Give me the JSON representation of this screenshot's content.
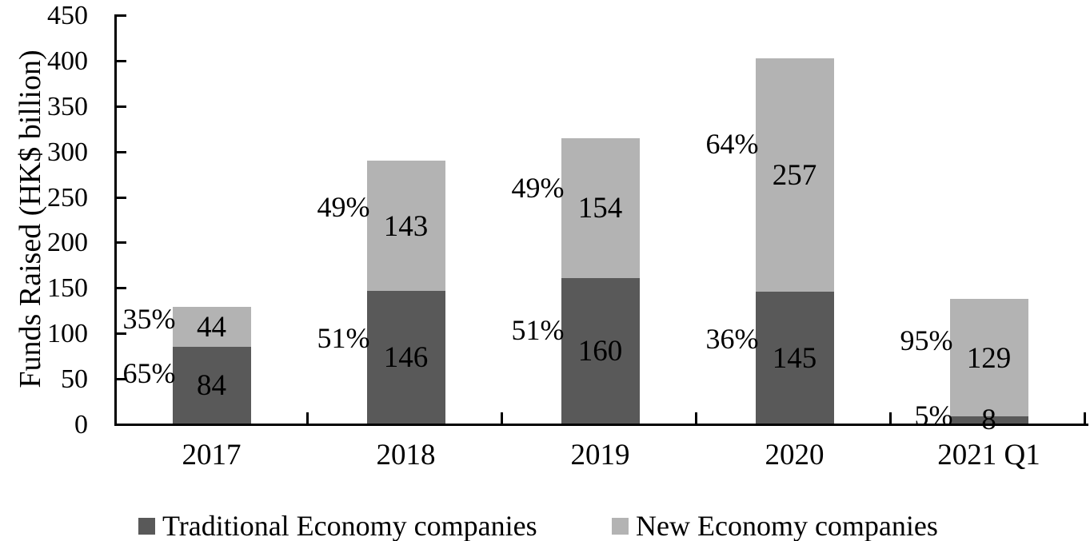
{
  "chart_data": {
    "type": "bar",
    "stacked": true,
    "title": "",
    "xlabel": "",
    "ylabel": "Funds Raised (HK$ billion)",
    "ylim": [
      0,
      450
    ],
    "ytick_step": 50,
    "grid": false,
    "legend_position": "bottom",
    "categories": [
      "2017",
      "2018",
      "2019",
      "2020",
      "2021 Q1"
    ],
    "series": [
      {
        "name": "Traditional Economy companies",
        "color": "#595959",
        "values": [
          84,
          146,
          160,
          145,
          8
        ],
        "value_labels": [
          "84",
          "146",
          "160",
          "145",
          "8"
        ],
        "pct_labels": [
          "65%",
          "51%",
          "51%",
          "36%",
          "5%"
        ]
      },
      {
        "name": "New Economy companies",
        "color": "#b3b3b3",
        "values": [
          44,
          143,
          154,
          257,
          129
        ],
        "value_labels": [
          "44",
          "143",
          "154",
          "257",
          "129"
        ],
        "pct_labels": [
          "35%",
          "49%",
          "49%",
          "64%",
          "95%"
        ]
      }
    ]
  },
  "legend": {
    "items": [
      {
        "label": "Traditional Economy companies",
        "color": "#595959"
      },
      {
        "label": "New Economy companies",
        "color": "#b3b3b3"
      }
    ]
  },
  "colors": {
    "axis": "#000000",
    "text": "#000000",
    "background": "#ffffff"
  }
}
